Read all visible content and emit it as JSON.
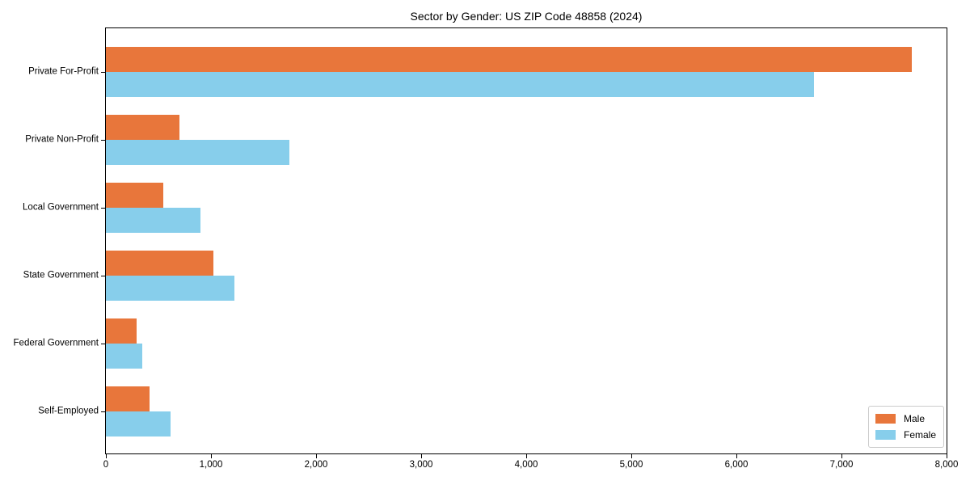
{
  "chart_data": {
    "type": "bar",
    "orientation": "horizontal",
    "title": "Sector by Gender: US ZIP Code 48858 (2024)",
    "categories": [
      "Private For-Profit",
      "Private Non-Profit",
      "Local Government",
      "State Government",
      "Federal Government",
      "Self-Employed"
    ],
    "series": [
      {
        "name": "Male",
        "color": "#e8763b",
        "values": [
          7670,
          700,
          545,
          1020,
          290,
          415
        ]
      },
      {
        "name": "Female",
        "color": "#87ceeb",
        "values": [
          6740,
          1745,
          900,
          1220,
          345,
          615
        ]
      }
    ],
    "xlabel": "",
    "ylabel": "",
    "xlim": [
      0,
      8000
    ],
    "x_ticks": [
      0,
      1000,
      2000,
      3000,
      4000,
      5000,
      6000,
      7000,
      8000
    ],
    "x_tick_labels": [
      "0",
      "1,000",
      "2,000",
      "3,000",
      "4,000",
      "5,000",
      "6,000",
      "7,000",
      "8,000"
    ],
    "grid": false,
    "legend_position": "lower right",
    "frame_color": "#000000",
    "background_color": "#ffffff"
  }
}
